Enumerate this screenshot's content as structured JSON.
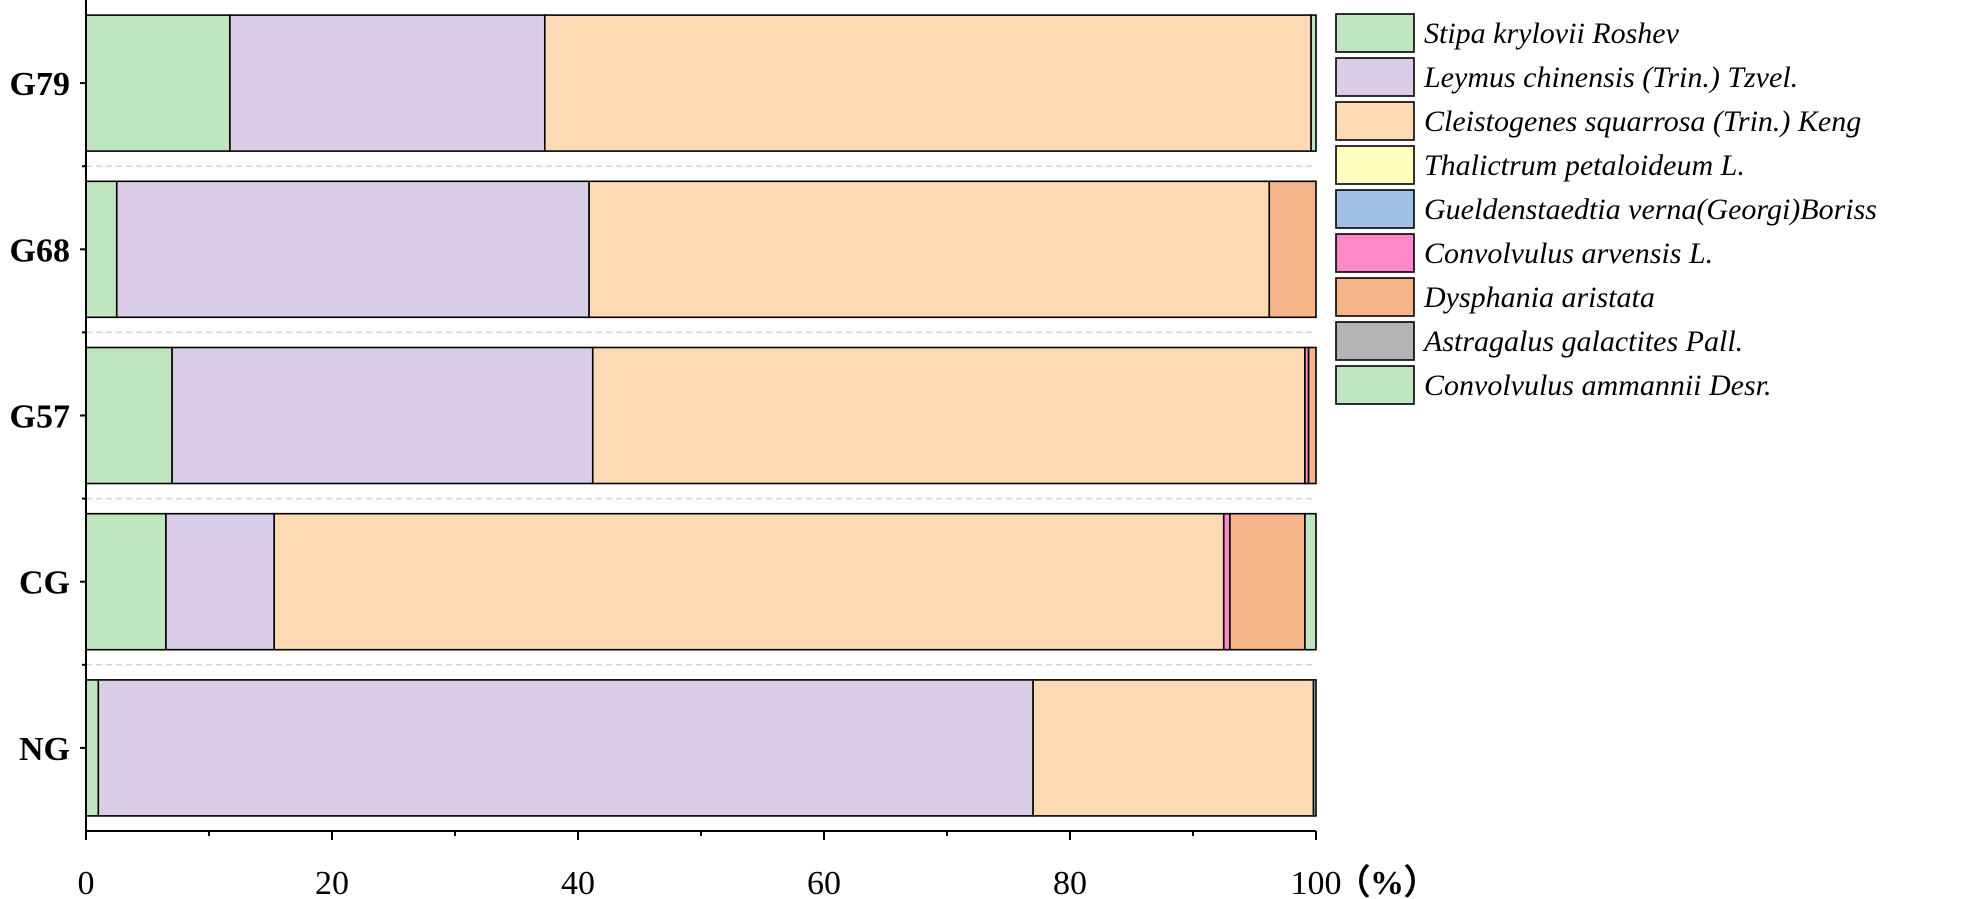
{
  "chart_data": {
    "type": "bar",
    "orientation": "horizontal",
    "stacked": true,
    "categories": [
      "G79",
      "G68",
      "G57",
      "CG",
      "NG"
    ],
    "x_unit": "（%）",
    "xlim": [
      0,
      100
    ],
    "xticks": [
      "0",
      "20",
      "40",
      "60",
      "80",
      "100"
    ],
    "legend_position": "right",
    "series": [
      {
        "name": "Stipa krylovii Roshev",
        "color": "#c0e6c0",
        "values": [
          11.7,
          2.5,
          7.0,
          6.5,
          1.0
        ]
      },
      {
        "name": "Leymus chinensis (Trin.) Tzvel.",
        "color": "#dacde8",
        "values": [
          25.6,
          38.4,
          34.2,
          8.8,
          76.0
        ]
      },
      {
        "name": "Cleistogenes squarrosa (Trin.) Keng",
        "color": "#fdd9b4",
        "values": [
          62.3,
          55.3,
          57.9,
          77.2,
          22.8
        ]
      },
      {
        "name": "Thalictrum petaloideum L.",
        "color": "#ffffc0",
        "values": [
          0,
          0,
          0,
          0,
          0
        ]
      },
      {
        "name": "Gueldenstaedtia verna(Georgi)Boriss",
        "color": "#a0c0e6",
        "values": [
          0,
          0,
          0,
          0,
          0
        ]
      },
      {
        "name": "Convolvulus arvensis L.",
        "color": "#ff88c8",
        "values": [
          0,
          0,
          0.3,
          0.5,
          0
        ]
      },
      {
        "name": "Dysphania aristata",
        "color": "#f6b48a",
        "values": [
          0,
          3.8,
          0.6,
          6.1,
          0
        ]
      },
      {
        "name": "Astragalus galactites Pall.",
        "color": "#b4b4b4",
        "values": [
          0,
          0,
          0,
          0,
          0
        ]
      },
      {
        "name": "Convolvulus ammannii Desr.",
        "color": "#c0e6c0",
        "values": [
          0.4,
          0,
          0,
          0.9,
          0.2
        ]
      }
    ]
  }
}
